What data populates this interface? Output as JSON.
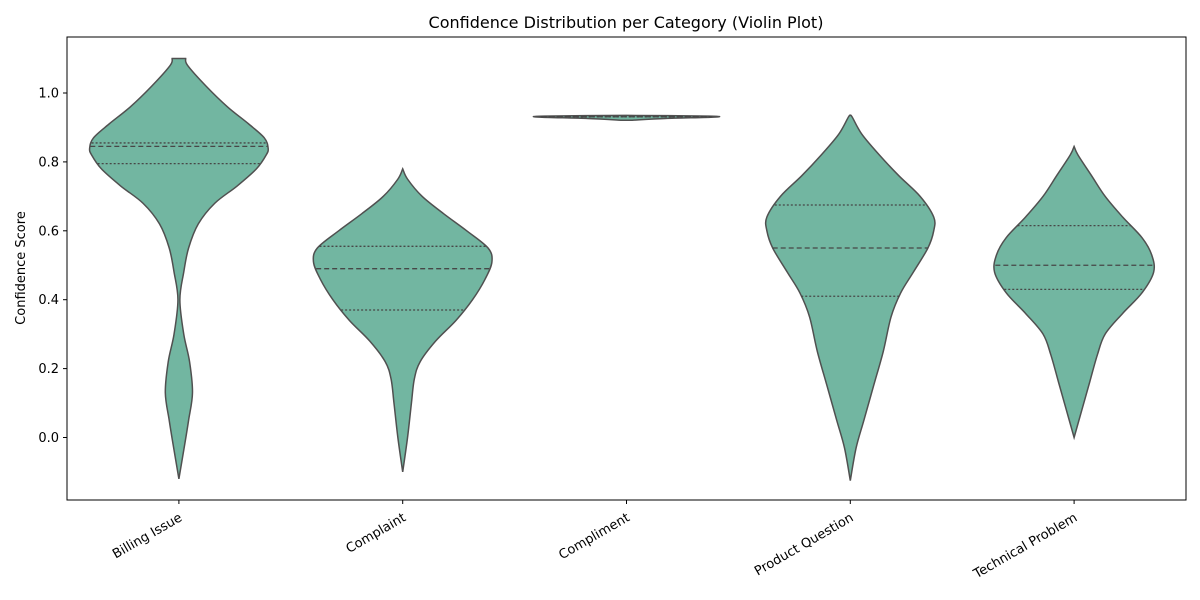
{
  "chart_data": {
    "type": "violin",
    "title": "Confidence Distribution per Category (Violin Plot)",
    "xlabel": "",
    "ylabel": "Confidence Score",
    "ylim": [
      -0.19,
      1.15
    ],
    "yticks": [
      "0.0",
      "0.2",
      "0.4",
      "0.6",
      "0.8",
      "1.0"
    ],
    "x_tick_rotation_deg": 30,
    "fill_color": "#72b6a1",
    "edge_color": "#505050",
    "categories": [
      "Billing Issue",
      "Complaint",
      "Compliment",
      "Product Question",
      "Technical Problem"
    ],
    "violins": [
      {
        "category": "Billing Issue",
        "min": -0.12,
        "max": 1.1,
        "quartiles": {
          "q1": 0.795,
          "median": 0.845,
          "q3": 0.855
        },
        "density": [
          [
            -0.12,
            0.0
          ],
          [
            -0.02,
            0.06
          ],
          [
            0.05,
            0.1
          ],
          [
            0.13,
            0.14
          ],
          [
            0.22,
            0.11
          ],
          [
            0.3,
            0.05
          ],
          [
            0.4,
            0.01
          ],
          [
            0.48,
            0.05
          ],
          [
            0.55,
            0.1
          ],
          [
            0.62,
            0.2
          ],
          [
            0.68,
            0.37
          ],
          [
            0.73,
            0.6
          ],
          [
            0.78,
            0.8
          ],
          [
            0.82,
            0.9
          ],
          [
            0.84,
            0.92
          ],
          [
            0.87,
            0.88
          ],
          [
            0.91,
            0.72
          ],
          [
            0.96,
            0.5
          ],
          [
            1.02,
            0.28
          ],
          [
            1.08,
            0.09
          ],
          [
            1.1,
            0.07
          ]
        ]
      },
      {
        "category": "Complaint",
        "min": -0.1,
        "max": 0.78,
        "quartiles": {
          "q1": 0.37,
          "median": 0.49,
          "q3": 0.555
        },
        "density": [
          [
            -0.1,
            0.0
          ],
          [
            0.0,
            0.05
          ],
          [
            0.1,
            0.09
          ],
          [
            0.17,
            0.12
          ],
          [
            0.22,
            0.18
          ],
          [
            0.28,
            0.34
          ],
          [
            0.34,
            0.55
          ],
          [
            0.4,
            0.72
          ],
          [
            0.46,
            0.85
          ],
          [
            0.51,
            0.92
          ],
          [
            0.55,
            0.88
          ],
          [
            0.6,
            0.66
          ],
          [
            0.65,
            0.42
          ],
          [
            0.7,
            0.2
          ],
          [
            0.75,
            0.05
          ],
          [
            0.78,
            0.0
          ]
        ]
      },
      {
        "category": "Compliment",
        "min": 0.921,
        "max": 0.935,
        "quartiles": {
          "q1": 0.931,
          "median": 0.931,
          "q3": 0.931
        },
        "density": [
          [
            0.921,
            0.06
          ],
          [
            0.926,
            0.4
          ],
          [
            0.93,
            0.9
          ],
          [
            0.933,
            0.85
          ],
          [
            0.935,
            0.0
          ]
        ]
      },
      {
        "category": "Product Question",
        "min": -0.125,
        "max": 0.935,
        "quartiles": {
          "q1": 0.41,
          "median": 0.55,
          "q3": 0.675
        },
        "density": [
          [
            -0.125,
            0.0
          ],
          [
            -0.03,
            0.06
          ],
          [
            0.05,
            0.14
          ],
          [
            0.15,
            0.24
          ],
          [
            0.25,
            0.34
          ],
          [
            0.35,
            0.42
          ],
          [
            0.42,
            0.52
          ],
          [
            0.48,
            0.65
          ],
          [
            0.55,
            0.8
          ],
          [
            0.6,
            0.86
          ],
          [
            0.64,
            0.86
          ],
          [
            0.7,
            0.72
          ],
          [
            0.76,
            0.5
          ],
          [
            0.82,
            0.3
          ],
          [
            0.88,
            0.12
          ],
          [
            0.93,
            0.02
          ],
          [
            0.935,
            0.0
          ]
        ]
      },
      {
        "category": "Technical Problem",
        "min": 0.0,
        "max": 0.845,
        "quartiles": {
          "q1": 0.43,
          "median": 0.5,
          "q3": 0.615
        },
        "density": [
          [
            0.0,
            0.0
          ],
          [
            0.08,
            0.08
          ],
          [
            0.16,
            0.16
          ],
          [
            0.24,
            0.24
          ],
          [
            0.3,
            0.32
          ],
          [
            0.36,
            0.5
          ],
          [
            0.42,
            0.7
          ],
          [
            0.48,
            0.82
          ],
          [
            0.53,
            0.8
          ],
          [
            0.58,
            0.7
          ],
          [
            0.64,
            0.5
          ],
          [
            0.7,
            0.32
          ],
          [
            0.76,
            0.18
          ],
          [
            0.82,
            0.04
          ],
          [
            0.845,
            0.0
          ]
        ]
      }
    ]
  }
}
